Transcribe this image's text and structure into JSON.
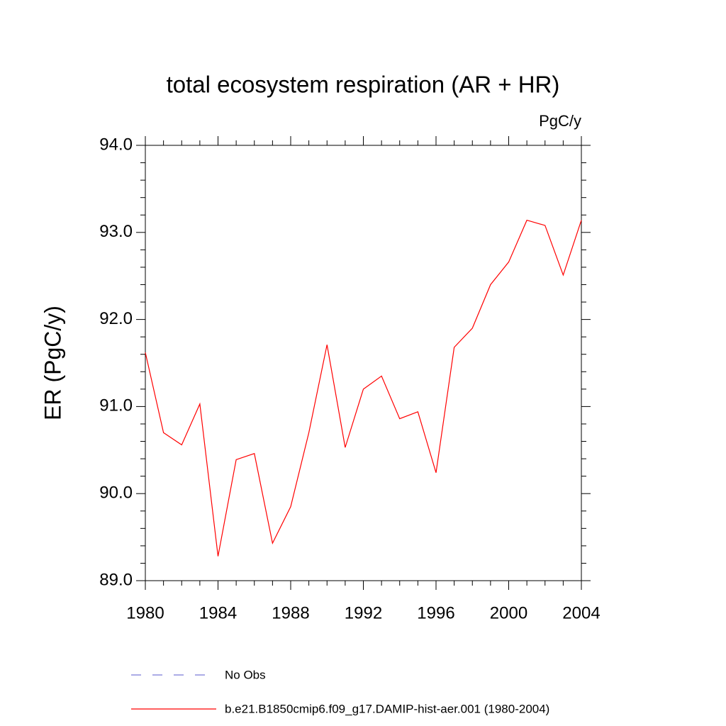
{
  "chart_data": {
    "type": "line",
    "title": "total ecosystem respiration (AR + HR)",
    "units": "PgC/y",
    "y_label": "ER  (PgC/y)",
    "x": [
      1980,
      1981,
      1982,
      1983,
      1984,
      1985,
      1986,
      1987,
      1988,
      1989,
      1990,
      1991,
      1992,
      1993,
      1994,
      1995,
      1996,
      1997,
      1998,
      1999,
      2000,
      2001,
      2002,
      2003,
      2004
    ],
    "series": [
      {
        "name": "No Obs",
        "color": "#7a7ad6",
        "dashed": true,
        "values": [
          null,
          null,
          null,
          null,
          null,
          null,
          null,
          null,
          null,
          null,
          null,
          null,
          null,
          null,
          null,
          null,
          null,
          null,
          null,
          null,
          null,
          null,
          null,
          null,
          null
        ]
      },
      {
        "name": "b.e21.B1850cmip6.f09_g17.DAMIP-hist-aer.001 (1980-2004)",
        "color": "#ff0000",
        "dashed": false,
        "values": [
          91.62,
          90.7,
          90.56,
          91.03,
          89.28,
          90.39,
          90.46,
          89.43,
          89.85,
          90.7,
          91.71,
          90.53,
          91.2,
          91.35,
          90.86,
          90.94,
          90.24,
          91.68,
          91.9,
          92.4,
          92.66,
          93.14,
          93.08,
          92.51,
          93.14
        ]
      }
    ],
    "xlim": [
      1980,
      2004
    ],
    "xticks": [
      1980,
      1984,
      1988,
      1992,
      1996,
      2000,
      2004
    ],
    "xminorticks": [
      1981,
      1982,
      1983,
      1985,
      1986,
      1987,
      1989,
      1990,
      1991,
      1993,
      1994,
      1995,
      1997,
      1998,
      1999,
      2001,
      2002,
      2003
    ],
    "ylim": [
      89,
      94
    ],
    "yticks": [
      {
        "value": 89,
        "label": "89.0"
      },
      {
        "value": 90,
        "label": "90.0"
      },
      {
        "value": 91,
        "label": "91.0"
      },
      {
        "value": 92,
        "label": "92.0"
      },
      {
        "value": 93,
        "label": "93.0"
      },
      {
        "value": 94,
        "label": "94.0"
      }
    ],
    "yminorticks": [
      89.2,
      89.4,
      89.6,
      89.8,
      90.2,
      90.4,
      90.6,
      90.8,
      91.2,
      91.4,
      91.6,
      91.8,
      92.2,
      92.4,
      92.6,
      92.8,
      93.2,
      93.4,
      93.6,
      93.8
    ]
  }
}
